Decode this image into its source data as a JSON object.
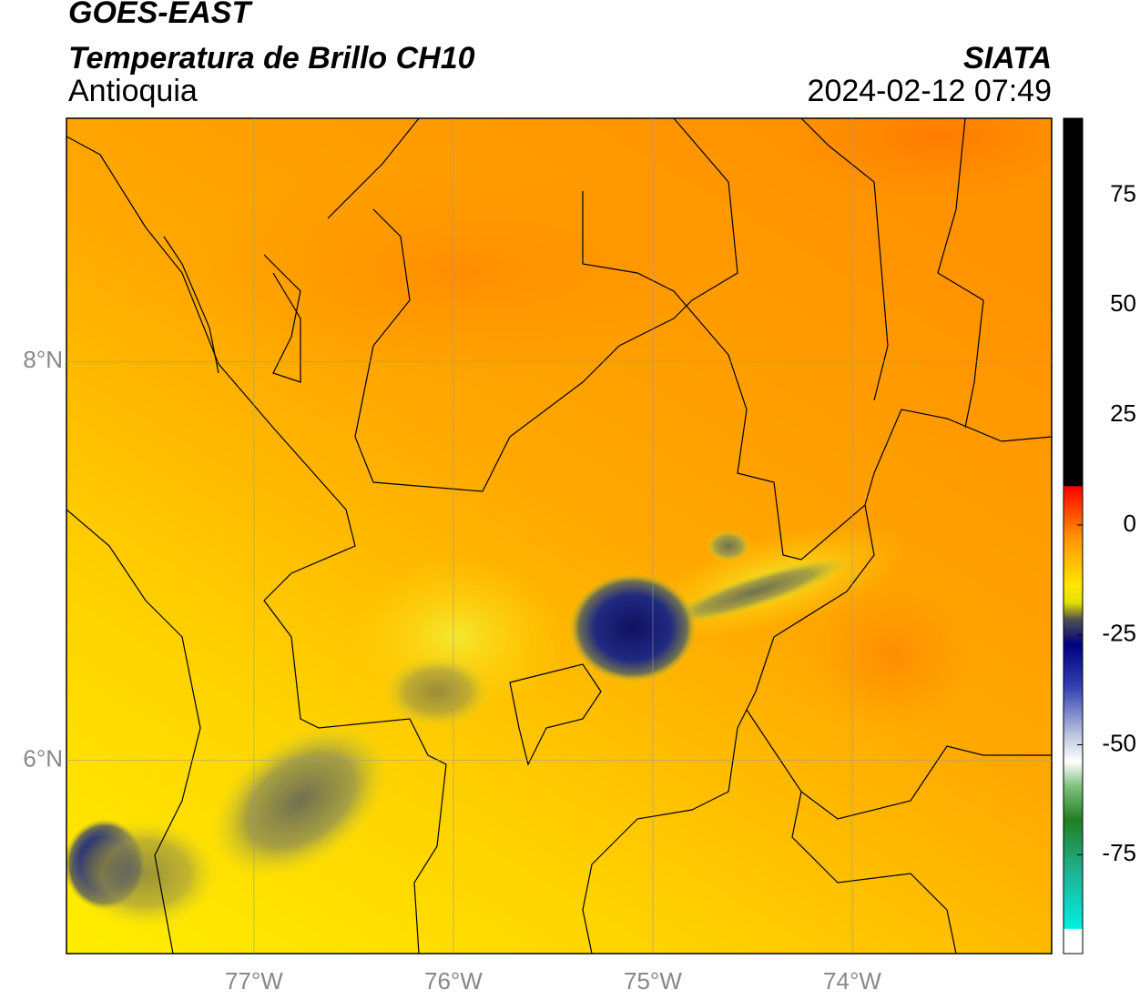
{
  "header": {
    "title": "GOES-EAST",
    "subtitle": "Temperatura de Brillo CH10",
    "region": "Antioquia",
    "source": "SIATA",
    "datetime": "2024-02-12 07:49"
  },
  "map": {
    "lonlim": [
      -77.94,
      -73.0
    ],
    "latlim": [
      5.03,
      9.22
    ],
    "xticks": [
      {
        "value": -77,
        "label": "77°W"
      },
      {
        "value": -76,
        "label": "76°W"
      },
      {
        "value": -75,
        "label": "75°W"
      },
      {
        "value": -74,
        "label": "74°W"
      }
    ],
    "yticks": [
      {
        "value": 6,
        "label": "6°N"
      },
      {
        "value": 8,
        "label": "8°N"
      }
    ],
    "grid": true
  },
  "colorbar": {
    "lim": [
      -97.5,
      92.5
    ],
    "ticks": [
      75,
      50,
      25,
      0,
      -25,
      -50,
      -75
    ]
  }
}
